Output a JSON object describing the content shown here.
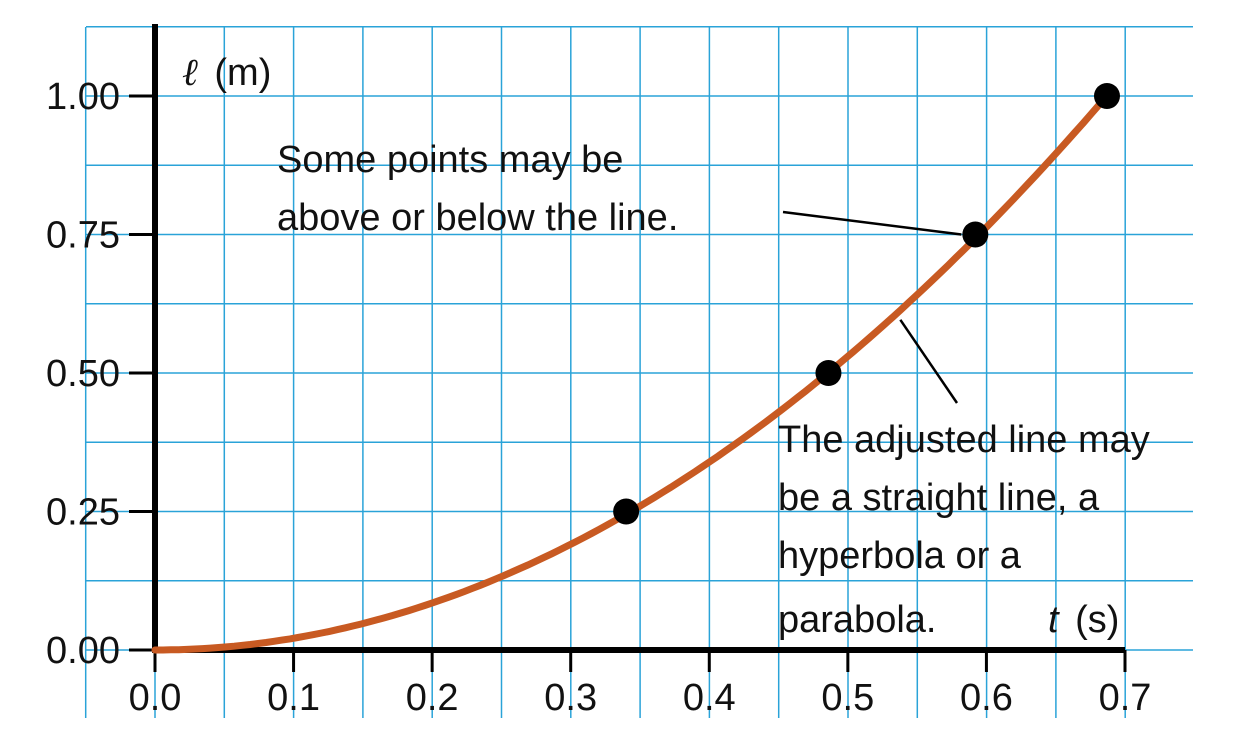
{
  "chart_data": {
    "type": "scatter",
    "x_label_symbol": "t",
    "x_label_unit": "(s)",
    "y_label_symbol": "ℓ",
    "y_label_unit": "(m)",
    "xlim": [
      0.0,
      0.7
    ],
    "ylim": [
      0.0,
      1.0
    ],
    "x_ticks": [
      "0.0",
      "0.1",
      "0.2",
      "0.3",
      "0.4",
      "0.5",
      "0.6",
      "0.7"
    ],
    "y_ticks": [
      "0.00",
      "0.25",
      "0.50",
      "0.75",
      "1.00"
    ],
    "grid": true,
    "points": [
      {
        "x": 0.34,
        "y": 0.25
      },
      {
        "x": 0.486,
        "y": 0.5
      },
      {
        "x": 0.592,
        "y": 0.75
      },
      {
        "x": 0.687,
        "y": 1.0
      }
    ],
    "fit_curve": {
      "form": "parabola",
      "a": 2.12
    },
    "annotations": [
      {
        "lines": [
          "Some points may be",
          "above or below the line."
        ]
      },
      {
        "lines": [
          "The adjusted line may",
          "be a straight line, a",
          "hyperbola or a",
          "parabola."
        ]
      }
    ],
    "colors": {
      "grid": "#2aa3d8",
      "curve": "#c85a22",
      "axis": "#000000",
      "point": "#000000"
    }
  }
}
